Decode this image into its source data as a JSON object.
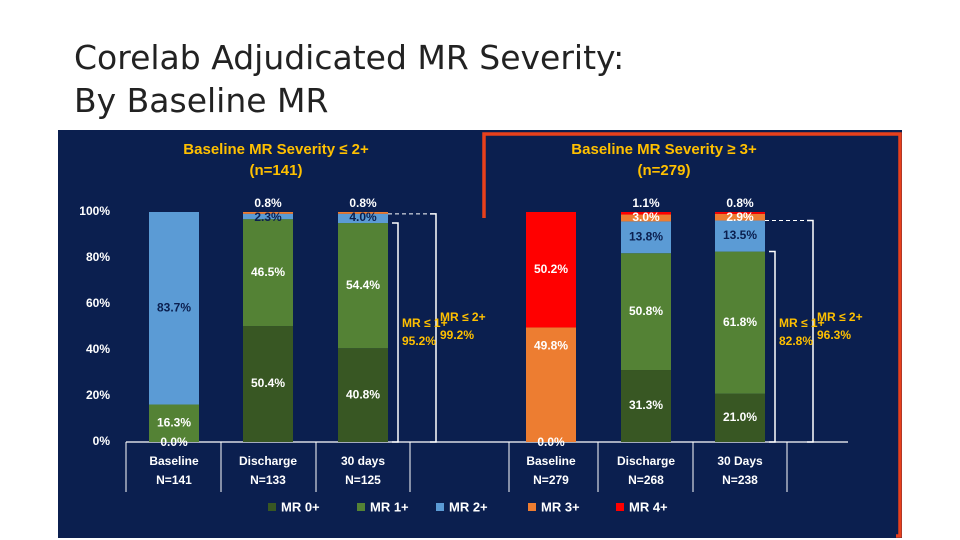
{
  "page": {
    "title_line1": "Corelab Adjudicated MR Severity:",
    "title_line2": "By Baseline MR"
  },
  "chart_data": {
    "type": "bar",
    "stacked": true,
    "ylim": [
      0,
      100
    ],
    "yticks": [
      "0%",
      "20%",
      "40%",
      "60%",
      "80%",
      "100%"
    ],
    "colors": {
      "MR 0+": "#385723",
      "MR 1+": "#548235",
      "MR 2+": "#5b9bd5",
      "MR 3+": "#ed7d31",
      "MR 4+": "#ff0000",
      "background": "#0b1f4f",
      "highlight": "#e8401c",
      "annotation": "#ffc000"
    },
    "legend": {
      "position": "bottom",
      "entries": [
        "MR 0+",
        "MR 1+",
        "MR 2+",
        "MR 3+",
        "MR 4+"
      ]
    },
    "groups": [
      {
        "title_line1": "Baseline MR Severity ≤ 2+",
        "title_line2": "(n=141)",
        "bars": [
          {
            "label": "Baseline",
            "n": "N=141",
            "segments": [
              {
                "series": "MR 1+",
                "value": 16.3,
                "label": "16.3%"
              },
              {
                "series": "MR 2+",
                "value": 83.7,
                "label": "83.7%"
              }
            ],
            "extra_labels": [
              "0.0%"
            ]
          },
          {
            "label": "Discharge",
            "n": "N=133",
            "segments": [
              {
                "series": "MR 0+",
                "value": 50.4,
                "label": "50.4%"
              },
              {
                "series": "MR 1+",
                "value": 46.5,
                "label": "46.5%"
              },
              {
                "series": "MR 2+",
                "value": 2.3,
                "label": "2.3%"
              },
              {
                "series": "MR 3+",
                "value": 0.8,
                "label": "0.8%"
              }
            ]
          },
          {
            "label": "30 days",
            "n": "N=125",
            "segments": [
              {
                "series": "MR 0+",
                "value": 40.8,
                "label": "40.8%"
              },
              {
                "series": "MR 1+",
                "value": 54.4,
                "label": "54.4%"
              },
              {
                "series": "MR 2+",
                "value": 4.0,
                "label": "4.0%"
              },
              {
                "series": "MR 3+",
                "value": 0.8,
                "label": "0.8%"
              }
            ]
          }
        ],
        "bracket_le1": {
          "label1": "MR ≤ 1+",
          "label2": "95.2%",
          "value": 95.2
        },
        "bracket_le2": {
          "label1": "MR ≤ 2+",
          "label2": "99.2%",
          "value": 99.2
        }
      },
      {
        "title_line1": "Baseline MR Severity ≥ 3+",
        "title_line2": "(n=279)",
        "bars": [
          {
            "label": "Baseline",
            "n": "N=279",
            "segments": [
              {
                "series": "MR 3+",
                "value": 49.8,
                "label": "49.8%"
              },
              {
                "series": "MR 4+",
                "value": 50.2,
                "label": "50.2%"
              }
            ],
            "extra_labels": [
              "0.0%"
            ]
          },
          {
            "label": "Discharge",
            "n": "N=268",
            "segments": [
              {
                "series": "MR 0+",
                "value": 31.3,
                "label": "31.3%"
              },
              {
                "series": "MR 1+",
                "value": 50.8,
                "label": "50.8%"
              },
              {
                "series": "MR 2+",
                "value": 13.8,
                "label": "13.8%"
              },
              {
                "series": "MR 3+",
                "value": 3.0,
                "label": "3.0%"
              },
              {
                "series": "MR 4+",
                "value": 1.1,
                "label": "1.1%"
              }
            ]
          },
          {
            "label": "30 Days",
            "n": "N=238",
            "segments": [
              {
                "series": "MR 0+",
                "value": 21.0,
                "label": "21.0%"
              },
              {
                "series": "MR 1+",
                "value": 61.8,
                "label": "61.8%"
              },
              {
                "series": "MR 2+",
                "value": 13.5,
                "label": "13.5%"
              },
              {
                "series": "MR 3+",
                "value": 2.9,
                "label": "2.9%"
              },
              {
                "series": "MR 4+",
                "value": 0.8,
                "label": "0.8%"
              }
            ]
          }
        ],
        "bracket_le1": {
          "label1": "MR ≤ 1+",
          "label2": "82.8%",
          "value": 82.8
        },
        "bracket_le2": {
          "label1": "MR ≤ 2+",
          "label2": "96.3%",
          "value": 96.3
        }
      }
    ]
  }
}
